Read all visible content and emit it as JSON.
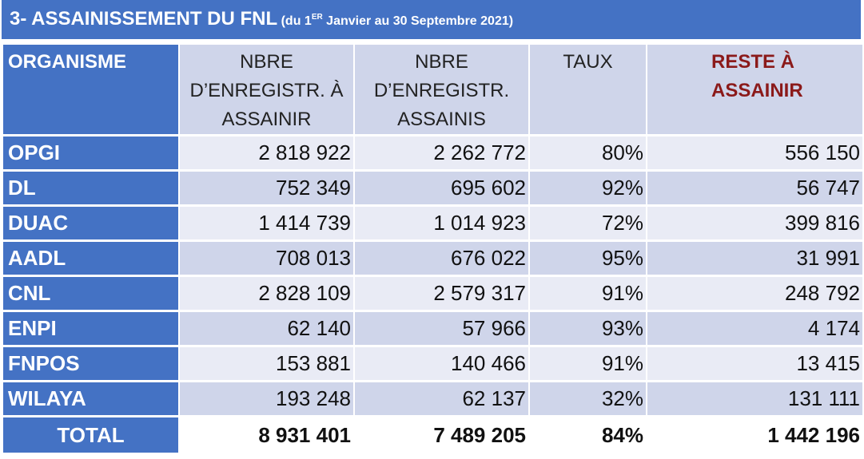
{
  "title": {
    "main": "3- ASSAINISSEMENT DU FNL",
    "sub_before": " (du 1",
    "sub_sup": "ER",
    "sub_after": " Janvier au 30 Septembre 2021)"
  },
  "colors": {
    "header_blue": "#4472c4",
    "band_dark": "#cfd5ea",
    "band_light": "#e9ebf5",
    "reste_red": "#8b1a1a"
  },
  "headers": {
    "organisme": "ORGANISME",
    "col1": [
      "NBRE",
      "D’ENREGISTR. À",
      "ASSAINIR"
    ],
    "col2": [
      "NBRE",
      "D’ENREGISTR.",
      "ASSAINIS"
    ],
    "col3": "TAUX",
    "col4": [
      "RESTE À",
      "ASSAINIR"
    ]
  },
  "rows": [
    {
      "org": "OPGI",
      "a_assainir": "2 818 922",
      "assainis": "2 262 772",
      "taux": "80%",
      "reste": "556 150"
    },
    {
      "org": "DL",
      "a_assainir": "752 349",
      "assainis": "695 602",
      "taux": "92%",
      "reste": "56 747"
    },
    {
      "org": "DUAC",
      "a_assainir": "1 414 739",
      "assainis": "1 014 923",
      "taux": "72%",
      "reste": "399 816"
    },
    {
      "org": "AADL",
      "a_assainir": "708 013",
      "assainis": "676 022",
      "taux": "95%",
      "reste": "31 991"
    },
    {
      "org": "CNL",
      "a_assainir": "2 828 109",
      "assainis": "2 579 317",
      "taux": "91%",
      "reste": "248 792"
    },
    {
      "org": "ENPI",
      "a_assainir": "62 140",
      "assainis": "57 966",
      "taux": "93%",
      "reste": "4 174"
    },
    {
      "org": "FNPOS",
      "a_assainir": "153 881",
      "assainis": "140 466",
      "taux": "91%",
      "reste": "13 415"
    },
    {
      "org": "WILAYA",
      "a_assainir": "193 248",
      "assainis": "62 137",
      "taux": "32%",
      "reste": "131 111"
    }
  ],
  "total": {
    "org": "TOTAL",
    "a_assainir": "8 931 401",
    "assainis": "7 489 205",
    "taux": "84%",
    "reste": "1 442 196"
  }
}
